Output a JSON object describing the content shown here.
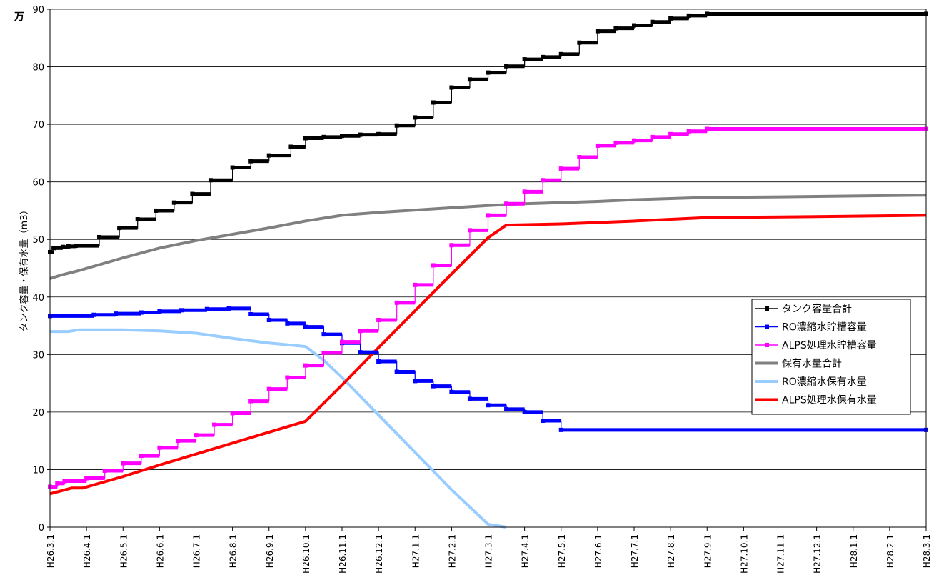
{
  "chart_data": {
    "type": "line",
    "unit_label": "万",
    "ylabel": "タンク容量・保有水量（m3）",
    "xlabel": "",
    "ylim": [
      0,
      90
    ],
    "yticks": [
      0,
      10,
      20,
      30,
      40,
      50,
      60,
      70,
      80,
      90
    ],
    "x_categories": [
      "H26.3.1",
      "H26.4.1",
      "H26.5.1",
      "H26.6.1",
      "H26.7.1",
      "H26.8.1",
      "H26.9.1",
      "H26.10.1",
      "H26.11.1",
      "H26.12.1",
      "H27.1.1",
      "H27.2.1",
      "H27.3.1",
      "H27.4.1",
      "H27.5.1",
      "H27.6.1",
      "H27.7.1",
      "H27.8.1",
      "H27.9.1",
      "H27.10.1",
      "H27.11.1",
      "H27.12.1",
      "H28.1.1",
      "H28.2.1",
      "H28.3.1"
    ],
    "grid": "horizontal",
    "legend_position": "right",
    "series": [
      {
        "name": "タンク容量合計",
        "color": "#000000",
        "style": "step",
        "marker": "square",
        "points": [
          [
            0,
            47.8
          ],
          [
            0.1,
            48.5
          ],
          [
            0.35,
            48.7
          ],
          [
            0.5,
            48.8
          ],
          [
            0.7,
            48.9
          ],
          [
            1.35,
            50.4
          ],
          [
            1.9,
            52.0
          ],
          [
            2.4,
            53.5
          ],
          [
            2.9,
            55.0
          ],
          [
            3.4,
            56.4
          ],
          [
            3.9,
            57.9
          ],
          [
            4.4,
            60.3
          ],
          [
            5.0,
            62.5
          ],
          [
            5.5,
            63.6
          ],
          [
            6.0,
            64.6
          ],
          [
            6.6,
            66.1
          ],
          [
            7.0,
            67.6
          ],
          [
            7.5,
            67.8
          ],
          [
            8.0,
            68.0
          ],
          [
            8.5,
            68.2
          ],
          [
            9.0,
            68.3
          ],
          [
            9.5,
            69.8
          ],
          [
            10.0,
            71.2
          ],
          [
            10.5,
            73.8
          ],
          [
            11.0,
            76.4
          ],
          [
            11.5,
            77.8
          ],
          [
            12.0,
            79.0
          ],
          [
            12.5,
            80.1
          ],
          [
            13.0,
            81.3
          ],
          [
            13.5,
            81.7
          ],
          [
            14.0,
            82.2
          ],
          [
            14.5,
            84.2
          ],
          [
            15.0,
            86.2
          ],
          [
            15.5,
            86.7
          ],
          [
            16.0,
            87.2
          ],
          [
            16.5,
            87.8
          ],
          [
            17.0,
            88.4
          ],
          [
            17.5,
            88.9
          ],
          [
            18.0,
            89.2
          ],
          [
            24.0,
            89.2
          ]
        ]
      },
      {
        "name": "RO濃縮水貯槽容量",
        "color": "#0000FF",
        "style": "step",
        "marker": "square",
        "points": [
          [
            0,
            36.7
          ],
          [
            1.2,
            36.9
          ],
          [
            1.8,
            37.1
          ],
          [
            2.5,
            37.3
          ],
          [
            3.0,
            37.5
          ],
          [
            3.6,
            37.7
          ],
          [
            4.3,
            37.9
          ],
          [
            4.9,
            38.0
          ],
          [
            5.5,
            37.0
          ],
          [
            6.0,
            36.0
          ],
          [
            6.5,
            35.4
          ],
          [
            7.0,
            34.8
          ],
          [
            7.5,
            33.5
          ],
          [
            8.0,
            32.0
          ],
          [
            8.5,
            30.4
          ],
          [
            9.0,
            28.8
          ],
          [
            9.5,
            27.0
          ],
          [
            10.0,
            25.4
          ],
          [
            10.5,
            24.5
          ],
          [
            11.0,
            23.5
          ],
          [
            11.5,
            22.3
          ],
          [
            12.0,
            21.2
          ],
          [
            12.5,
            20.5
          ],
          [
            13.0,
            20.0
          ],
          [
            13.5,
            18.5
          ],
          [
            14.0,
            16.9
          ],
          [
            24.0,
            16.9
          ]
        ]
      },
      {
        "name": "ALPS処理水貯槽容量",
        "color": "#FF00FF",
        "style": "step",
        "marker": "square",
        "points": [
          [
            0,
            7.0
          ],
          [
            0.2,
            7.6
          ],
          [
            0.4,
            8.0
          ],
          [
            1.0,
            8.5
          ],
          [
            1.5,
            9.8
          ],
          [
            2.0,
            11.1
          ],
          [
            2.5,
            12.4
          ],
          [
            3.0,
            13.8
          ],
          [
            3.5,
            15.0
          ],
          [
            4.0,
            16.0
          ],
          [
            4.5,
            17.8
          ],
          [
            5.0,
            19.8
          ],
          [
            5.5,
            21.9
          ],
          [
            6.0,
            24.0
          ],
          [
            6.5,
            26.0
          ],
          [
            7.0,
            28.1
          ],
          [
            7.5,
            30.3
          ],
          [
            8.0,
            32.2
          ],
          [
            8.5,
            34.1
          ],
          [
            9.0,
            36.0
          ],
          [
            9.5,
            39.0
          ],
          [
            10.0,
            42.1
          ],
          [
            10.5,
            45.5
          ],
          [
            11.0,
            49.0
          ],
          [
            11.5,
            51.6
          ],
          [
            12.0,
            54.2
          ],
          [
            12.5,
            56.2
          ],
          [
            13.0,
            58.3
          ],
          [
            13.5,
            60.3
          ],
          [
            14.0,
            62.3
          ],
          [
            14.5,
            64.3
          ],
          [
            15.0,
            66.3
          ],
          [
            15.5,
            66.8
          ],
          [
            16.0,
            67.2
          ],
          [
            16.5,
            67.8
          ],
          [
            17.0,
            68.3
          ],
          [
            17.5,
            68.8
          ],
          [
            18.0,
            69.2
          ],
          [
            24.0,
            69.2
          ]
        ]
      },
      {
        "name": "保有水量合計",
        "color": "#808080",
        "style": "line",
        "marker": "none",
        "points": [
          [
            0,
            43.2
          ],
          [
            0.3,
            43.8
          ],
          [
            0.8,
            44.6
          ],
          [
            2.0,
            46.8
          ],
          [
            3.0,
            48.5
          ],
          [
            4.0,
            49.8
          ],
          [
            5.0,
            50.9
          ],
          [
            6.0,
            52.0
          ],
          [
            7.0,
            53.2
          ],
          [
            8.0,
            54.2
          ],
          [
            9.0,
            54.7
          ],
          [
            10.0,
            55.1
          ],
          [
            11.0,
            55.5
          ],
          [
            12.0,
            55.9
          ],
          [
            13.0,
            56.2
          ],
          [
            14.0,
            56.4
          ],
          [
            15.0,
            56.6
          ],
          [
            16.0,
            56.9
          ],
          [
            17.0,
            57.1
          ],
          [
            18.0,
            57.3
          ],
          [
            20.0,
            57.4
          ],
          [
            24.0,
            57.7
          ]
        ]
      },
      {
        "name": "RO濃縮水保有水量",
        "color": "#99CCFF",
        "style": "line",
        "marker": "none",
        "points": [
          [
            0,
            34.0
          ],
          [
            0.5,
            34.0
          ],
          [
            0.8,
            34.3
          ],
          [
            2.0,
            34.3
          ],
          [
            3.0,
            34.1
          ],
          [
            4.0,
            33.7
          ],
          [
            5.0,
            32.8
          ],
          [
            6.0,
            32.0
          ],
          [
            7.0,
            31.4
          ],
          [
            7.5,
            29.0
          ],
          [
            8.0,
            26.0
          ],
          [
            9.0,
            19.5
          ],
          [
            10.0,
            13.0
          ],
          [
            11.0,
            6.5
          ],
          [
            12.0,
            0.5
          ],
          [
            12.5,
            0.0
          ]
        ]
      },
      {
        "name": "ALPS処理水保有水量",
        "color": "#FF0000",
        "style": "line",
        "marker": "none",
        "points": [
          [
            0,
            5.8
          ],
          [
            0.6,
            6.8
          ],
          [
            0.9,
            6.8
          ],
          [
            2.0,
            8.8
          ],
          [
            3.0,
            10.8
          ],
          [
            4.0,
            12.7
          ],
          [
            5.0,
            14.6
          ],
          [
            6.0,
            16.5
          ],
          [
            7.0,
            18.4
          ],
          [
            8.0,
            24.7
          ],
          [
            9.0,
            31.2
          ],
          [
            10.0,
            37.6
          ],
          [
            11.0,
            44.0
          ],
          [
            12.0,
            50.3
          ],
          [
            12.5,
            52.5
          ],
          [
            14.0,
            52.7
          ],
          [
            16.0,
            53.2
          ],
          [
            18.0,
            53.8
          ],
          [
            20.0,
            53.9
          ],
          [
            24.0,
            54.2
          ]
        ]
      }
    ]
  }
}
